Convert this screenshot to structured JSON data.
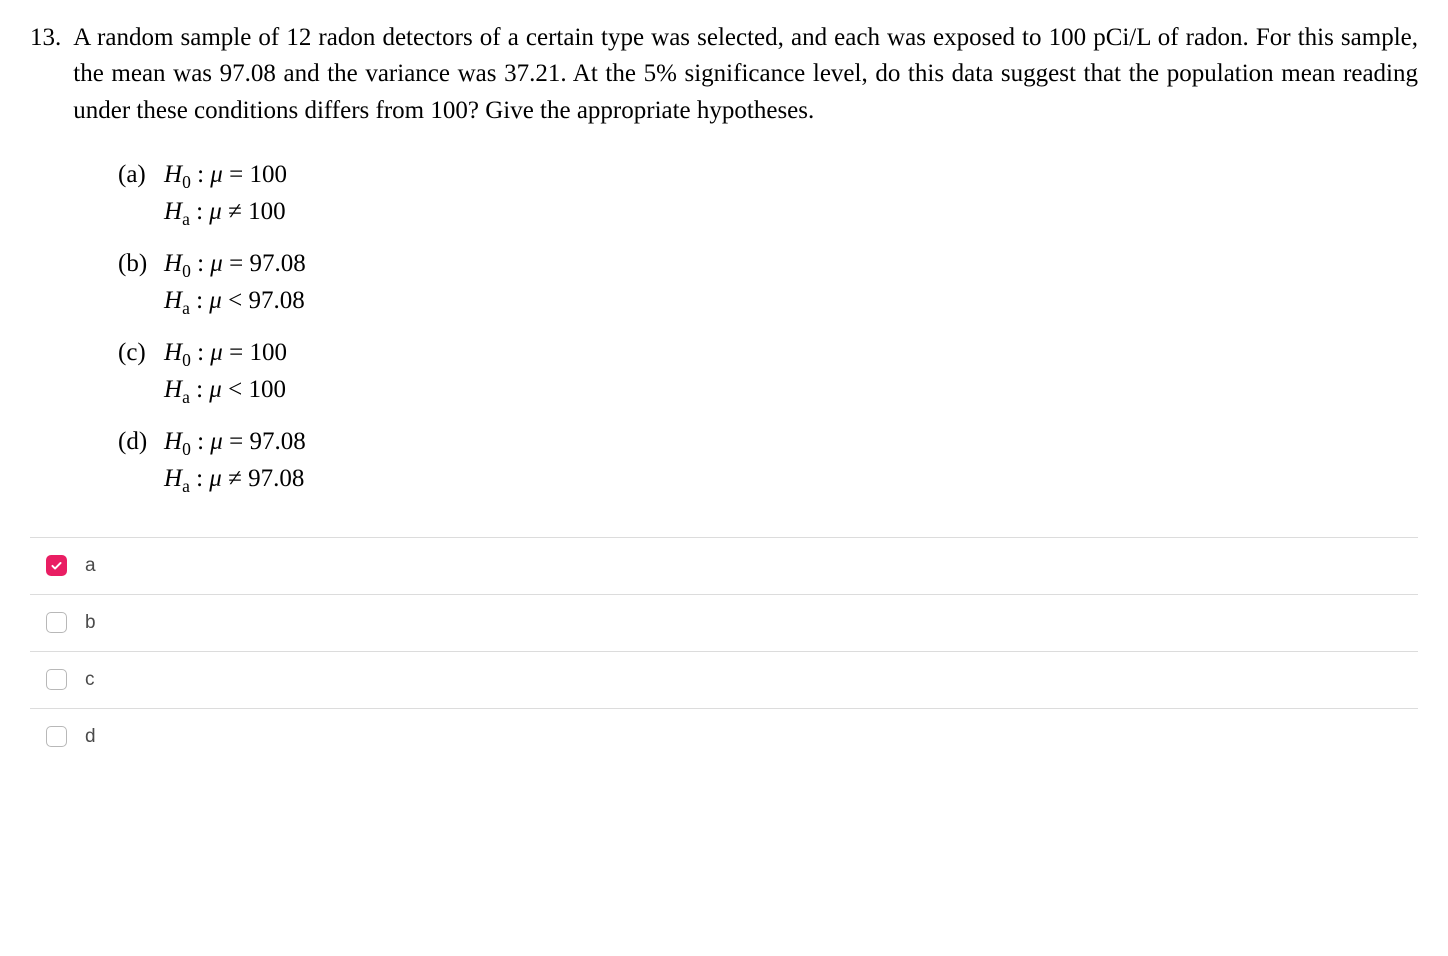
{
  "question": {
    "number": "13.",
    "text": "A random sample of 12 radon detectors of a certain type was selected, and each was exposed to 100 pCi/L of radon. For this sample, the mean was 97.08 and the variance was 37.21. At the 5% significance level, do this data suggest that the population mean reading under these conditions differs from 100? Give the appropriate hypotheses."
  },
  "options": {
    "a": {
      "letter": "(a)",
      "h0_value": "100",
      "ha_rel": "≠",
      "ha_value": "100"
    },
    "b": {
      "letter": "(b)",
      "h0_value": "97.08",
      "ha_rel": "<",
      "ha_value": "97.08"
    },
    "c": {
      "letter": "(c)",
      "h0_value": "100",
      "ha_rel": "<",
      "ha_value": "100"
    },
    "d": {
      "letter": "(d)",
      "h0_value": "97.08",
      "ha_rel": "≠",
      "ha_value": "97.08"
    }
  },
  "answers": [
    {
      "label": "a",
      "checked": true
    },
    {
      "label": "b",
      "checked": false
    },
    {
      "label": "c",
      "checked": false
    },
    {
      "label": "d",
      "checked": false
    }
  ],
  "colors": {
    "text": "#000000",
    "border": "#dcdcdc",
    "checkbox_border": "#b8b8b8",
    "checked_bg": "#e91e63",
    "answer_text": "#4a4a4a",
    "check_stroke": "#ffffff"
  }
}
